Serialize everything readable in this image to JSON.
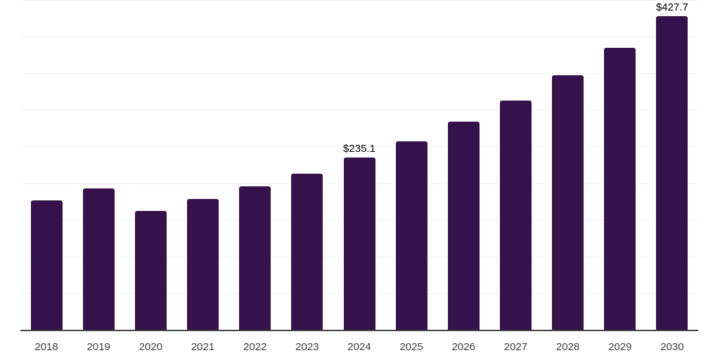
{
  "chart_data": {
    "type": "bar",
    "title": "",
    "xlabel": "",
    "ylabel": "",
    "categories": [
      "2018",
      "2019",
      "2020",
      "2021",
      "2022",
      "2023",
      "2024",
      "2025",
      "2026",
      "2027",
      "2028",
      "2029",
      "2030"
    ],
    "values": [
      176.6,
      192.9,
      162.2,
      178.5,
      195.7,
      213.0,
      235.1,
      257.1,
      284.0,
      312.8,
      347.3,
      384.8,
      427.7
    ],
    "data_labels": [
      "",
      "",
      "",
      "",
      "",
      "",
      "$235.1",
      "",
      "",
      "",
      "",
      "",
      "$427.7"
    ],
    "value_prefix": "$",
    "ylim": [
      0,
      450
    ],
    "gridline_step": 50,
    "grid": true,
    "legend": "none",
    "y_axis_tick_labels_visible": false
  },
  "style": {
    "background": "#ffffff",
    "bar_color": "#36124C",
    "axis_line_color": "#444444",
    "gridline_color": "#f1f1f1",
    "tick_label_color": "#3d3d3d",
    "data_label_color": "#000000"
  }
}
